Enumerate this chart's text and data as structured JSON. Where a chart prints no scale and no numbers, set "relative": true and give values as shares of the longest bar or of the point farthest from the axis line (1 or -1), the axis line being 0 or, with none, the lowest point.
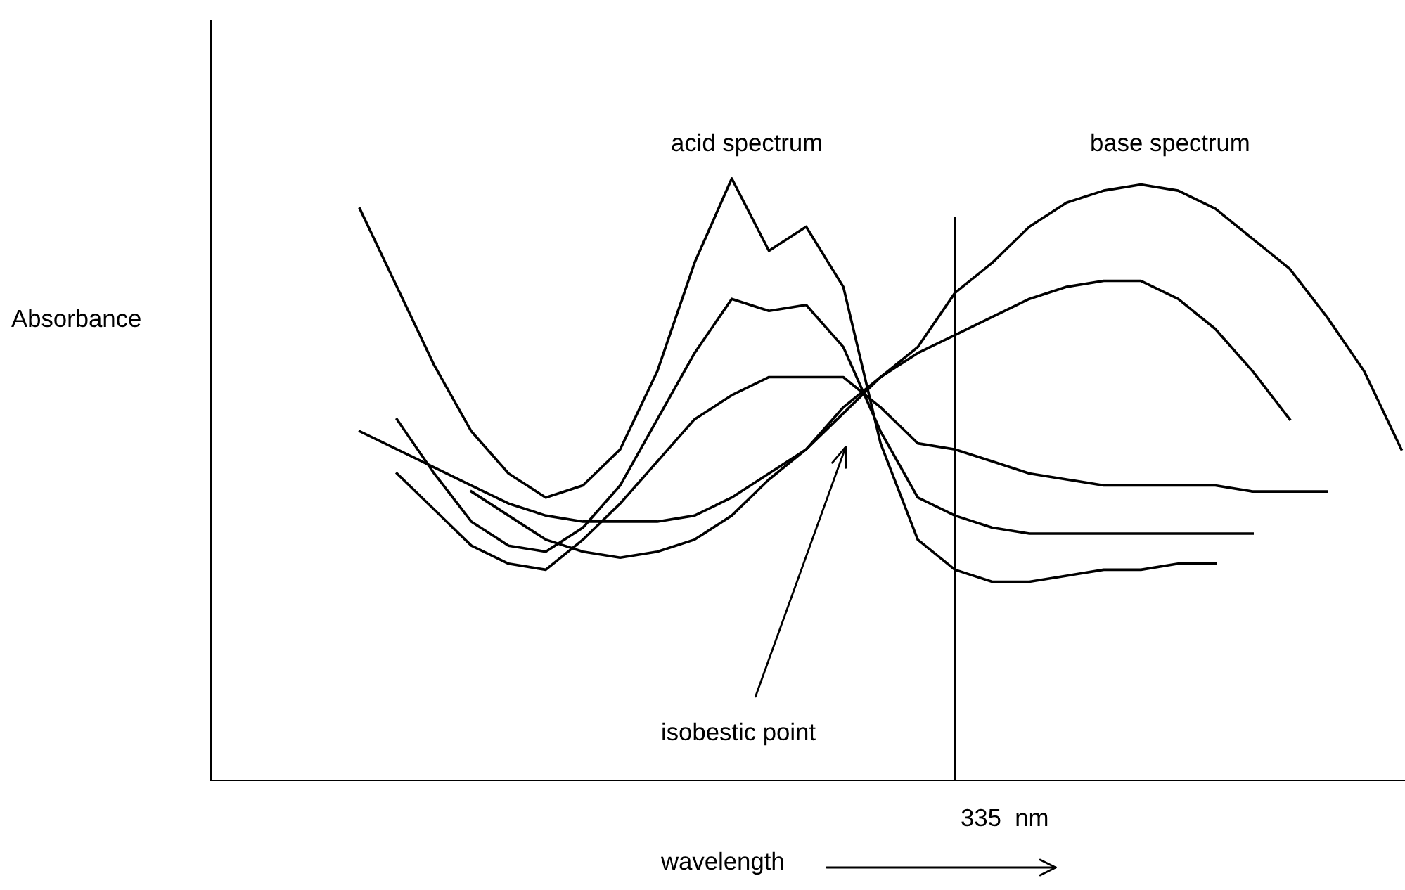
{
  "chart_data": {
    "type": "line",
    "relative": true,
    "ylabel": "Absorbance",
    "xlabel": "wavelength",
    "categories": [
      null,
      null,
      null,
      null,
      null,
      null,
      null,
      null,
      null,
      null,
      null,
      null,
      null,
      null,
      null,
      null,
      null,
      null,
      null,
      null,
      null,
      null,
      null,
      null,
      null,
      null,
      null,
      null,
      null,
      null,
      null,
      null,
      null
    ],
    "series": [
      {
        "color": "#000000",
        "values": [
          null,
          null,
          null,
          null,
          0.95,
          0.82,
          0.69,
          0.58,
          0.51,
          0.47,
          0.49,
          0.55,
          0.68,
          0.86,
          1.0,
          0.88,
          0.92,
          0.82,
          0.56,
          0.4,
          0.35,
          0.33,
          0.33,
          0.34,
          0.35,
          0.35,
          0.36,
          0.36,
          null,
          null,
          null,
          null,
          null
        ]
      },
      {
        "color": "#000000",
        "values": [
          null,
          null,
          null,
          null,
          null,
          0.6,
          0.51,
          0.43,
          0.39,
          0.38,
          0.42,
          0.49,
          0.6,
          0.71,
          0.8,
          0.78,
          0.79,
          0.72,
          0.58,
          0.47,
          0.44,
          0.42,
          0.41,
          0.41,
          0.41,
          0.41,
          0.41,
          0.41,
          0.41,
          null,
          null,
          null,
          null
        ]
      },
      {
        "color": "#000000",
        "values": [
          null,
          null,
          null,
          null,
          null,
          0.51,
          0.45,
          0.39,
          0.36,
          0.35,
          0.4,
          0.46,
          0.53,
          0.6,
          0.64,
          0.67,
          0.67,
          0.67,
          0.62,
          0.56,
          0.55,
          0.53,
          0.51,
          0.5,
          0.49,
          0.49,
          0.49,
          0.49,
          0.48,
          0.48,
          0.48,
          null,
          null
        ]
      },
      {
        "color": "#000000",
        "values": [
          null,
          null,
          null,
          null,
          0.58,
          0.55,
          0.52,
          0.49,
          0.46,
          0.44,
          0.43,
          0.43,
          0.43,
          0.44,
          0.47,
          0.51,
          0.55,
          0.61,
          0.67,
          0.72,
          0.81,
          0.86,
          0.92,
          0.96,
          0.98,
          0.99,
          0.98,
          0.95,
          0.9,
          0.85,
          0.77,
          0.68,
          0.55
        ]
      },
      {
        "color": "#000000",
        "values": [
          null,
          null,
          null,
          null,
          null,
          null,
          null,
          0.48,
          0.44,
          0.4,
          0.38,
          0.37,
          0.38,
          0.4,
          0.44,
          0.5,
          0.55,
          0.62,
          0.67,
          0.71,
          0.74,
          0.77,
          0.8,
          0.82,
          0.83,
          0.83,
          0.8,
          0.75,
          0.68,
          0.6,
          null,
          null,
          null
        ]
      }
    ],
    "annotations": [
      "acid spectrum",
      "base spectrum",
      "isobestic point",
      "335  nm"
    ],
    "grid": false,
    "marker": "none",
    "line_style": "solid"
  }
}
